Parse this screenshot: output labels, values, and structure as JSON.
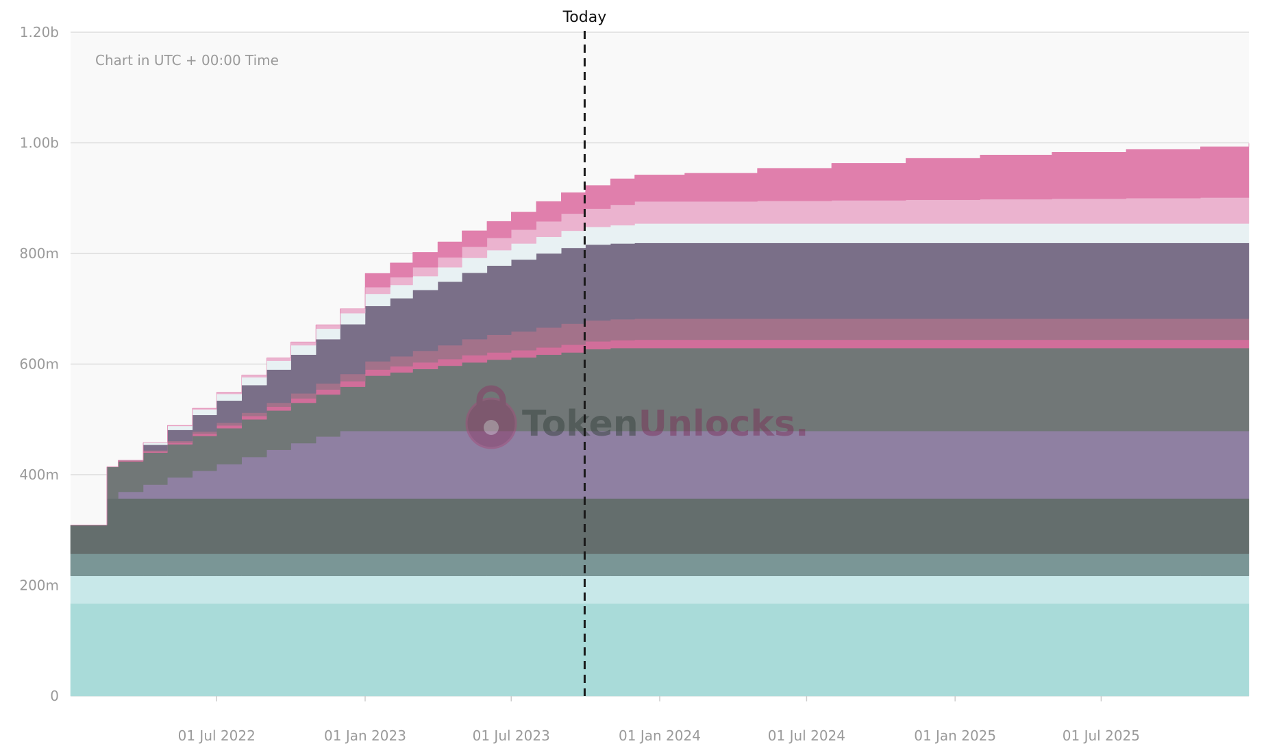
{
  "chart_data": {
    "type": "area",
    "stacked": true,
    "step": true,
    "note": "Chart in UTC + 00:00 Time",
    "today": {
      "label": "Today",
      "date": "2023-09-30"
    },
    "watermark": {
      "part1": "Token",
      "part2": "Unlocks",
      "part3": "."
    },
    "x_range": [
      "2022-01-01",
      "2025-12-31"
    ],
    "ylim": [
      0,
      1200000000
    ],
    "grid": true,
    "legend": "none",
    "x_ticks": [
      {
        "label": "01 Jul 2022",
        "date": "2022-07-01"
      },
      {
        "label": "01 Jan 2023",
        "date": "2023-01-01"
      },
      {
        "label": "01 Jul 2023",
        "date": "2023-07-01"
      },
      {
        "label": "01 Jan 2024",
        "date": "2024-01-01"
      },
      {
        "label": "01 Jul 2024",
        "date": "2024-07-01"
      },
      {
        "label": "01 Jan 2025",
        "date": "2025-01-01"
      },
      {
        "label": "01 Jul 2025",
        "date": "2025-07-01"
      }
    ],
    "y_ticks": [
      {
        "label": "0",
        "value": 0
      },
      {
        "label": "200m",
        "value": 200000000
      },
      {
        "label": "400m",
        "value": 400000000
      },
      {
        "label": "600m",
        "value": 600000000
      },
      {
        "label": "800m",
        "value": 800000000
      },
      {
        "label": "1.00b",
        "value": 1000000000
      },
      {
        "label": "1.20b",
        "value": 1200000000
      }
    ],
    "x": [
      "2022-01-01",
      "2022-02-15",
      "2022-03-01",
      "2022-04-01",
      "2022-05-01",
      "2022-06-01",
      "2022-07-01",
      "2022-08-01",
      "2022-09-01",
      "2022-10-01",
      "2022-11-01",
      "2022-12-01",
      "2023-01-01",
      "2023-02-01",
      "2023-03-01",
      "2023-04-01",
      "2023-05-01",
      "2023-06-01",
      "2023-07-01",
      "2023-08-01",
      "2023-09-01",
      "2023-10-01",
      "2023-11-01",
      "2023-12-01",
      "2024-02-01",
      "2024-05-01",
      "2024-08-01",
      "2024-11-01",
      "2025-02-01",
      "2025-05-01",
      "2025-08-01",
      "2025-11-01",
      "2025-12-31"
    ],
    "series": [
      {
        "color": "#a9dbd9",
        "values": [
          167000000,
          167000000,
          167000000,
          167000000,
          167000000,
          167000000,
          167000000,
          167000000,
          167000000,
          167000000,
          167000000,
          167000000,
          167000000,
          167000000,
          167000000,
          167000000,
          167000000,
          167000000,
          167000000,
          167000000,
          167000000,
          167000000,
          167000000,
          167000000,
          167000000,
          167000000,
          167000000,
          167000000,
          167000000,
          167000000,
          167000000,
          167000000,
          167000000
        ]
      },
      {
        "color": "#c8e8e9",
        "values": [
          50000000,
          50000000,
          50000000,
          50000000,
          50000000,
          50000000,
          50000000,
          50000000,
          50000000,
          50000000,
          50000000,
          50000000,
          50000000,
          50000000,
          50000000,
          50000000,
          50000000,
          50000000,
          50000000,
          50000000,
          50000000,
          50000000,
          50000000,
          50000000,
          50000000,
          50000000,
          50000000,
          50000000,
          50000000,
          50000000,
          50000000,
          50000000,
          50000000
        ]
      },
      {
        "color": "#7a9696",
        "values": [
          40000000,
          40000000,
          40000000,
          40000000,
          40000000,
          40000000,
          40000000,
          40000000,
          40000000,
          40000000,
          40000000,
          40000000,
          40000000,
          40000000,
          40000000,
          40000000,
          40000000,
          40000000,
          40000000,
          40000000,
          40000000,
          40000000,
          40000000,
          40000000,
          40000000,
          40000000,
          40000000,
          40000000,
          40000000,
          40000000,
          40000000,
          40000000,
          40000000
        ]
      },
      {
        "color": "#646e6d",
        "values": [
          52000000,
          100000000,
          100000000,
          100000000,
          100000000,
          100000000,
          100000000,
          100000000,
          100000000,
          100000000,
          100000000,
          100000000,
          100000000,
          100000000,
          100000000,
          100000000,
          100000000,
          100000000,
          100000000,
          100000000,
          100000000,
          100000000,
          100000000,
          100000000,
          100000000,
          100000000,
          100000000,
          100000000,
          100000000,
          100000000,
          100000000,
          100000000,
          100000000
        ]
      },
      {
        "color": "#8f80a2",
        "values": [
          0,
          0,
          12000000,
          25000000,
          38000000,
          50000000,
          62000000,
          75000000,
          88000000,
          100000000,
          112000000,
          122000000,
          122000000,
          122000000,
          122000000,
          122000000,
          122000000,
          122000000,
          122000000,
          122000000,
          122000000,
          122000000,
          122000000,
          122000000,
          122000000,
          122000000,
          122000000,
          122000000,
          122000000,
          122000000,
          122000000,
          122000000,
          122000000
        ]
      },
      {
        "color": "#717777",
        "values": [
          0,
          57000000,
          55000000,
          58000000,
          60000000,
          63000000,
          65000000,
          68000000,
          71000000,
          73000000,
          76000000,
          80000000,
          100000000,
          106000000,
          112000000,
          118000000,
          124000000,
          129000000,
          133000000,
          138000000,
          142000000,
          148000000,
          150000000,
          150000000,
          150000000,
          150000000,
          150000000,
          150000000,
          150000000,
          150000000,
          150000000,
          150000000,
          150000000
        ]
      },
      {
        "color": "#d16e9a",
        "values": [
          0,
          0,
          1000000,
          2000000,
          3000000,
          4000000,
          5000000,
          6000000,
          7000000,
          8000000,
          9000000,
          10000000,
          11000000,
          11000000,
          12000000,
          12000000,
          13000000,
          13000000,
          13000000,
          13000000,
          14000000,
          14000000,
          14000000,
          15000000,
          15000000,
          15000000,
          15000000,
          15000000,
          15000000,
          15000000,
          15000000,
          15000000,
          15000000
        ]
      },
      {
        "color": "#a3728a",
        "values": [
          0,
          0,
          1000000,
          2000000,
          3000000,
          4000000,
          5000000,
          6000000,
          7000000,
          9000000,
          11000000,
          13000000,
          15000000,
          18000000,
          21000000,
          25000000,
          29000000,
          32000000,
          34000000,
          36000000,
          38000000,
          38000000,
          38000000,
          38000000,
          38000000,
          38000000,
          38000000,
          38000000,
          38000000,
          38000000,
          38000000,
          38000000,
          38000000
        ]
      },
      {
        "color": "#7a6f88",
        "values": [
          0,
          0,
          0,
          10000000,
          20000000,
          30000000,
          40000000,
          50000000,
          60000000,
          70000000,
          80000000,
          90000000,
          100000000,
          105000000,
          110000000,
          115000000,
          120000000,
          125000000,
          130000000,
          134000000,
          137000000,
          137000000,
          137000000,
          137000000,
          137000000,
          137000000,
          137000000,
          137000000,
          137000000,
          137000000,
          137000000,
          137000000,
          137000000
        ]
      },
      {
        "color": "#e8f1f3",
        "values": [
          0,
          0,
          0,
          4000000,
          7000000,
          10000000,
          12000000,
          14000000,
          16000000,
          17000000,
          19000000,
          20000000,
          22000000,
          24000000,
          25000000,
          26000000,
          27000000,
          28000000,
          29000000,
          30000000,
          31000000,
          32000000,
          33000000,
          35000000,
          35000000,
          35000000,
          35000000,
          35000000,
          35000000,
          35000000,
          35000000,
          35000000,
          35000000
        ]
      },
      {
        "color": "#ebb3cf",
        "values": [
          0,
          0,
          0,
          0,
          1000000,
          2000000,
          3000000,
          4000000,
          5000000,
          6000000,
          7000000,
          8000000,
          12000000,
          14000000,
          16000000,
          18000000,
          20000000,
          22000000,
          25000000,
          28000000,
          31000000,
          33000000,
          37000000,
          40000000,
          40000000,
          41000000,
          42000000,
          43000000,
          44000000,
          45000000,
          46000000,
          47000000,
          48000000
        ]
      },
      {
        "color": "#e07fac",
        "values": [
          0,
          0,
          0,
          0,
          0,
          0,
          0,
          0,
          0,
          0,
          0,
          0,
          25000000,
          26000000,
          27000000,
          28000000,
          29000000,
          30000000,
          32000000,
          36000000,
          38000000,
          42000000,
          47000000,
          48000000,
          51000000,
          59000000,
          67000000,
          75000000,
          80000000,
          84000000,
          88000000,
          92000000,
          97000000
        ]
      }
    ]
  }
}
